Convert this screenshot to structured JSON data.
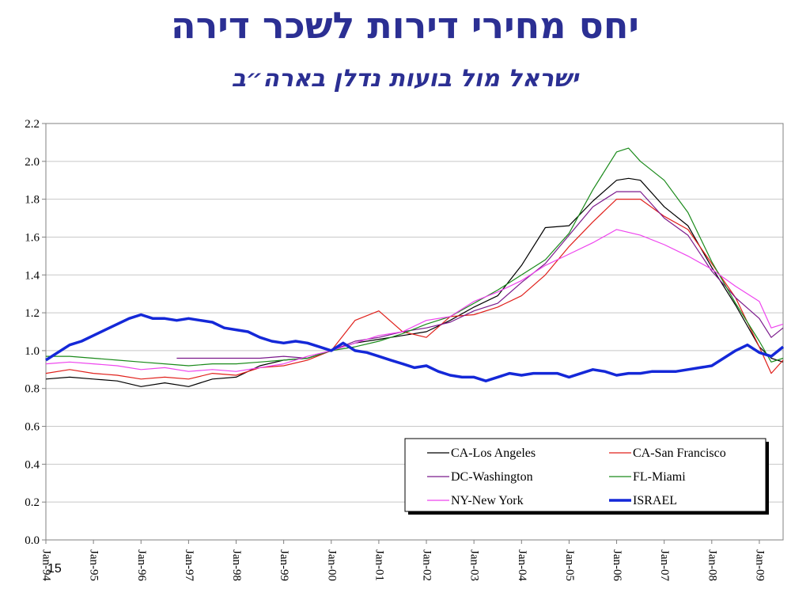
{
  "title": "יחס מחירי דירות לשכר דירה",
  "subtitle": "ישראל מול בועות נדלן בארה״ב",
  "page_number": "15",
  "colors": {
    "title": "#2b2f93",
    "CA-Los Angeles": "#000000",
    "CA-San Francisco": "#e0201b",
    "DC-Washington": "#7b1a8c",
    "FL-Miami": "#1a8a1a",
    "NY-New York": "#ee44ee",
    "ISRAEL": "#1428d8"
  },
  "chart_data": {
    "type": "line",
    "title": "",
    "xlabel": "",
    "ylabel": "",
    "ylim": [
      0.0,
      2.2
    ],
    "yticks": [
      "0.0",
      "0.2",
      "0.4",
      "0.6",
      "0.8",
      "1.0",
      "1.2",
      "1.4",
      "1.6",
      "1.8",
      "2.0",
      "2.2"
    ],
    "xlim": [
      "1994-01",
      "2009-07"
    ],
    "xticks": [
      "Jan-94",
      "Jan-95",
      "Jan-96",
      "Jan-97",
      "Jan-98",
      "Jan-99",
      "Jan-00",
      "Jan-01",
      "Jan-02",
      "Jan-03",
      "Jan-04",
      "Jan-05",
      "Jan-06",
      "Jan-07",
      "Jan-08",
      "Jan-09"
    ],
    "grid": "horizontal",
    "legend_position": "bottom-right",
    "series": [
      {
        "name": "CA-Los Angeles",
        "x": [
          "1994-01",
          "1994-07",
          "1995-01",
          "1995-07",
          "1996-01",
          "1996-07",
          "1997-01",
          "1997-07",
          "1998-01",
          "1998-07",
          "1999-01",
          "1999-07",
          "2000-01",
          "2000-07",
          "2001-01",
          "2001-07",
          "2002-01",
          "2002-07",
          "2003-01",
          "2003-07",
          "2004-01",
          "2004-07",
          "2005-01",
          "2005-07",
          "2006-01",
          "2006-04",
          "2006-07",
          "2007-01",
          "2007-07",
          "2008-01",
          "2008-07",
          "2009-01",
          "2009-04",
          "2009-07"
        ],
        "values": [
          0.85,
          0.86,
          0.85,
          0.84,
          0.81,
          0.83,
          0.81,
          0.85,
          0.86,
          0.92,
          0.95,
          0.96,
          1.0,
          1.04,
          1.06,
          1.08,
          1.1,
          1.16,
          1.23,
          1.29,
          1.45,
          1.65,
          1.66,
          1.79,
          1.9,
          1.91,
          1.9,
          1.76,
          1.66,
          1.44,
          1.24,
          1.02,
          0.96,
          0.94
        ]
      },
      {
        "name": "CA-San Francisco",
        "x": [
          "1994-01",
          "1994-07",
          "1995-01",
          "1995-07",
          "1996-01",
          "1996-07",
          "1997-01",
          "1997-07",
          "1998-01",
          "1998-07",
          "1999-01",
          "1999-07",
          "2000-01",
          "2000-07",
          "2001-01",
          "2001-07",
          "2002-01",
          "2002-07",
          "2003-01",
          "2003-07",
          "2004-01",
          "2004-07",
          "2005-01",
          "2005-07",
          "2006-01",
          "2006-07",
          "2007-01",
          "2007-07",
          "2008-01",
          "2008-07",
          "2009-01",
          "2009-04",
          "2009-07"
        ],
        "values": [
          0.88,
          0.9,
          0.88,
          0.87,
          0.85,
          0.86,
          0.85,
          0.88,
          0.87,
          0.91,
          0.92,
          0.95,
          1.0,
          1.16,
          1.21,
          1.1,
          1.07,
          1.18,
          1.19,
          1.23,
          1.29,
          1.4,
          1.55,
          1.68,
          1.8,
          1.8,
          1.71,
          1.64,
          1.46,
          1.28,
          1.02,
          0.88,
          0.95
        ]
      },
      {
        "name": "DC-Washington",
        "x": [
          "1996-10",
          "1997-07",
          "1998-01",
          "1998-07",
          "1999-01",
          "1999-07",
          "2000-01",
          "2000-07",
          "2001-01",
          "2001-07",
          "2002-01",
          "2002-07",
          "2003-01",
          "2003-07",
          "2004-01",
          "2004-07",
          "2005-01",
          "2005-07",
          "2006-01",
          "2006-07",
          "2007-01",
          "2007-07",
          "2008-01",
          "2008-07",
          "2009-01",
          "2009-04",
          "2009-07"
        ],
        "values": [
          0.96,
          0.96,
          0.96,
          0.96,
          0.97,
          0.96,
          1.0,
          1.05,
          1.07,
          1.1,
          1.12,
          1.15,
          1.21,
          1.25,
          1.36,
          1.46,
          1.61,
          1.76,
          1.84,
          1.84,
          1.7,
          1.61,
          1.42,
          1.28,
          1.17,
          1.07,
          1.12
        ]
      },
      {
        "name": "FL-Miami",
        "x": [
          "1994-01",
          "1994-07",
          "1995-01",
          "1995-07",
          "1996-01",
          "1996-07",
          "1997-01",
          "1997-07",
          "1998-01",
          "1998-07",
          "1999-01",
          "1999-07",
          "2000-01",
          "2000-07",
          "2001-01",
          "2001-07",
          "2002-01",
          "2002-07",
          "2003-01",
          "2003-07",
          "2004-01",
          "2004-07",
          "2005-01",
          "2005-07",
          "2006-01",
          "2006-04",
          "2006-07",
          "2007-01",
          "2007-07",
          "2008-01",
          "2008-07",
          "2009-01",
          "2009-04",
          "2009-07"
        ],
        "values": [
          0.97,
          0.97,
          0.96,
          0.95,
          0.94,
          0.93,
          0.92,
          0.93,
          0.93,
          0.94,
          0.95,
          0.96,
          1.0,
          1.02,
          1.05,
          1.09,
          1.14,
          1.18,
          1.25,
          1.32,
          1.4,
          1.48,
          1.62,
          1.85,
          2.05,
          2.07,
          2.0,
          1.9,
          1.73,
          1.47,
          1.25,
          1.05,
          0.94,
          0.96
        ]
      },
      {
        "name": "NY-New York",
        "x": [
          "1994-01",
          "1994-07",
          "1995-01",
          "1995-07",
          "1996-01",
          "1996-07",
          "1997-01",
          "1997-07",
          "1998-01",
          "1998-07",
          "1999-01",
          "1999-07",
          "2000-01",
          "2000-07",
          "2001-01",
          "2001-07",
          "2002-01",
          "2002-07",
          "2003-01",
          "2003-07",
          "2004-01",
          "2004-07",
          "2005-01",
          "2005-07",
          "2006-01",
          "2006-07",
          "2007-01",
          "2007-07",
          "2008-01",
          "2008-07",
          "2009-01",
          "2009-04",
          "2009-07"
        ],
        "values": [
          0.93,
          0.94,
          0.93,
          0.92,
          0.9,
          0.91,
          0.89,
          0.9,
          0.89,
          0.91,
          0.93,
          0.97,
          1.0,
          1.04,
          1.08,
          1.1,
          1.16,
          1.18,
          1.26,
          1.31,
          1.37,
          1.45,
          1.51,
          1.57,
          1.64,
          1.61,
          1.56,
          1.5,
          1.43,
          1.34,
          1.26,
          1.12,
          1.14
        ]
      },
      {
        "name": "ISRAEL",
        "x": [
          "1994-01",
          "1994-04",
          "1994-07",
          "1994-10",
          "1995-01",
          "1995-04",
          "1995-07",
          "1995-10",
          "1996-01",
          "1996-04",
          "1996-07",
          "1996-10",
          "1997-01",
          "1997-04",
          "1997-07",
          "1997-10",
          "1998-01",
          "1998-04",
          "1998-07",
          "1998-10",
          "1999-01",
          "1999-04",
          "1999-07",
          "1999-10",
          "2000-01",
          "2000-04",
          "2000-07",
          "2000-10",
          "2001-01",
          "2001-04",
          "2001-07",
          "2001-10",
          "2002-01",
          "2002-04",
          "2002-07",
          "2002-10",
          "2003-01",
          "2003-04",
          "2003-07",
          "2003-10",
          "2004-01",
          "2004-04",
          "2004-07",
          "2004-10",
          "2005-01",
          "2005-04",
          "2005-07",
          "2005-10",
          "2006-01",
          "2006-04",
          "2006-07",
          "2006-10",
          "2007-01",
          "2007-04",
          "2007-07",
          "2007-10",
          "2008-01",
          "2008-04",
          "2008-07",
          "2008-10",
          "2009-01",
          "2009-04",
          "2009-07"
        ],
        "values": [
          0.95,
          0.99,
          1.03,
          1.05,
          1.08,
          1.11,
          1.14,
          1.17,
          1.19,
          1.17,
          1.17,
          1.16,
          1.17,
          1.16,
          1.15,
          1.12,
          1.11,
          1.1,
          1.07,
          1.05,
          1.04,
          1.05,
          1.04,
          1.02,
          1.0,
          1.04,
          1.0,
          0.99,
          0.97,
          0.95,
          0.93,
          0.91,
          0.92,
          0.89,
          0.87,
          0.86,
          0.86,
          0.84,
          0.86,
          0.88,
          0.87,
          0.88,
          0.88,
          0.88,
          0.86,
          0.88,
          0.9,
          0.89,
          0.87,
          0.88,
          0.88,
          0.89,
          0.89,
          0.89,
          0.9,
          0.91,
          0.92,
          0.96,
          1.0,
          1.03,
          0.99,
          0.97,
          1.02
        ]
      }
    ]
  }
}
